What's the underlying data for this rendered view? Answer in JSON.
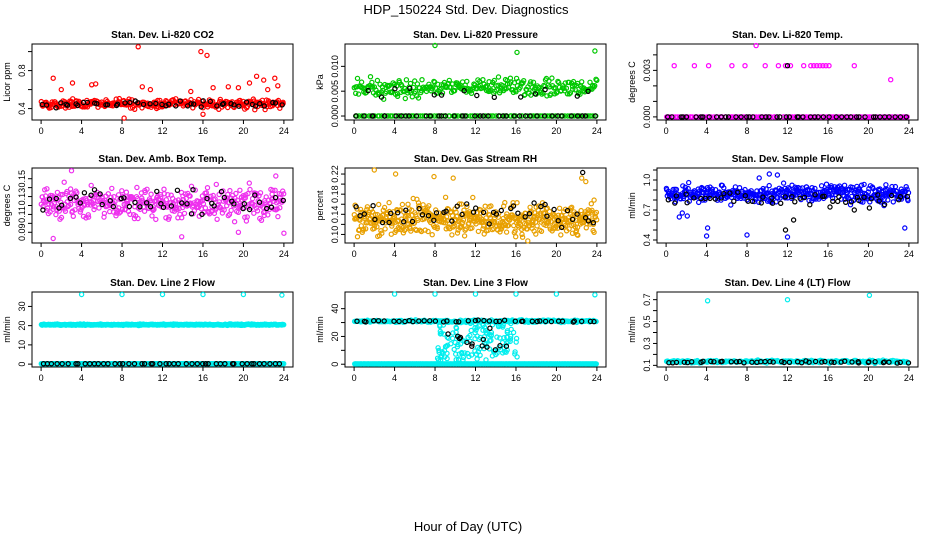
{
  "figure": {
    "title": "HDP_150224  Std. Dev. Diagnostics",
    "xlabel": "Hour of Day (UTC)"
  },
  "chart_data": [
    {
      "type": "scatter",
      "title": "Stan. Dev. Li-820 CO2",
      "ylabel": "Licor ppm",
      "color": "#ff0000",
      "xlim": [
        -0.9,
        24.9
      ],
      "ylim": [
        0.28,
        1.08
      ],
      "xticks": [
        0,
        4,
        8,
        12,
        16,
        20,
        24
      ],
      "xtick_labels": [
        "0",
        "4",
        "8",
        "12",
        "16",
        "20",
        "24"
      ],
      "yticks": [
        0.4,
        0.6,
        0.8,
        1.0
      ],
      "ytick_labels": [
        "0.4",
        "",
        "0.8",
        ""
      ],
      "series": [
        {
          "name": "points",
          "color": "#ff0000",
          "bands": [
            {
              "center": 0.45,
              "spread": 0.05,
              "count": 300
            }
          ],
          "extra": [
            [
              1.2,
              0.72
            ],
            [
              2.0,
              0.6
            ],
            [
              3.1,
              0.67
            ],
            [
              5.0,
              0.65
            ],
            [
              5.4,
              0.66
            ],
            [
              9.6,
              1.05
            ],
            [
              10.0,
              0.63
            ],
            [
              10.8,
              0.6
            ],
            [
              15.8,
              1.0
            ],
            [
              16.4,
              0.96
            ],
            [
              17.0,
              0.62
            ],
            [
              19.5,
              0.62
            ],
            [
              20.6,
              0.67
            ],
            [
              21.3,
              0.74
            ],
            [
              22.0,
              0.7
            ],
            [
              23.1,
              0.72
            ],
            [
              8.2,
              0.3
            ],
            [
              16.0,
              0.34
            ],
            [
              18.5,
              0.63
            ],
            [
              22.4,
              0.6
            ],
            [
              23.4,
              0.64
            ],
            [
              14.8,
              0.58
            ]
          ]
        },
        {
          "name": "hourly",
          "color": "#000000",
          "bands": [
            {
              "center": 0.45,
              "spread": 0.03,
              "count": 48
            }
          ]
        }
      ]
    },
    {
      "type": "scatter",
      "title": "Stan. Dev. Li-820 Pressure",
      "ylabel": "kPa",
      "color": "#00c800",
      "xlim": [
        -0.9,
        24.9
      ],
      "ylim": [
        -0.0008,
        0.0145
      ],
      "xticks": [
        0,
        4,
        8,
        12,
        16,
        20,
        24
      ],
      "xtick_labels": [
        "0",
        "4",
        "8",
        "12",
        "16",
        "20",
        "24"
      ],
      "yticks": [
        0.0,
        0.005,
        0.01
      ],
      "ytick_labels": [
        "0.000",
        "0.005",
        "0.010"
      ],
      "series": [
        {
          "name": "points",
          "color": "#00c800",
          "bands": [
            {
              "center": 0.0057,
              "spread": 0.0017,
              "count": 290
            },
            {
              "center": 0.0,
              "spread": 0.0,
              "count": 110
            }
          ],
          "extra": [
            [
              8.0,
              0.0142
            ],
            [
              16.1,
              0.0128
            ],
            [
              23.8,
              0.0131
            ]
          ]
        },
        {
          "name": "hourly",
          "color": "#000000",
          "bands": [
            {
              "center": 0.0,
              "spread": 0.0,
              "count": 40
            },
            {
              "center": 0.0045,
              "spread": 0.0018,
              "count": 14
            }
          ]
        }
      ]
    },
    {
      "type": "scatter",
      "title": "Stan. Dev. Li-820 Temp.",
      "ylabel": "degrees C",
      "color": "#ff00ff",
      "xlim": [
        -0.9,
        24.9
      ],
      "ylim": [
        -0.0002,
        0.0047
      ],
      "xticks": [
        0,
        4,
        8,
        12,
        16,
        20,
        24
      ],
      "xtick_labels": [
        "0",
        "4",
        "8",
        "12",
        "16",
        "20",
        "24"
      ],
      "yticks": [
        0.0,
        0.001,
        0.002,
        0.003,
        0.004
      ],
      "ytick_labels": [
        "0.000",
        "",
        "",
        "0.003",
        ""
      ],
      "series": [
        {
          "name": "points",
          "color": "#ff00ff",
          "bands": [
            {
              "center": 0.0,
              "spread": 0.0,
              "count": 130
            }
          ],
          "extra": [
            [
              0.8,
              0.0033
            ],
            [
              2.8,
              0.0033
            ],
            [
              4.2,
              0.0033
            ],
            [
              6.5,
              0.0033
            ],
            [
              7.8,
              0.0033
            ],
            [
              8.9,
              0.0046
            ],
            [
              9.8,
              0.0033
            ],
            [
              11.1,
              0.0033
            ],
            [
              11.8,
              0.0033
            ],
            [
              12.3,
              0.0033
            ],
            [
              13.6,
              0.0033
            ],
            [
              14.3,
              0.0033
            ],
            [
              14.6,
              0.0033
            ],
            [
              14.9,
              0.0033
            ],
            [
              15.2,
              0.0033
            ],
            [
              15.5,
              0.0033
            ],
            [
              15.8,
              0.0033
            ],
            [
              16.1,
              0.0033
            ],
            [
              18.6,
              0.0033
            ],
            [
              22.2,
              0.0024
            ]
          ]
        },
        {
          "name": "hourly",
          "color": "#000000",
          "bands": [
            {
              "center": 0.0,
              "spread": 0.0,
              "count": 48
            }
          ],
          "extra": [
            [
              12.0,
              0.0033
            ]
          ]
        }
      ]
    },
    {
      "type": "scatter",
      "title": "Stan. Dev. Amb. Box Temp.",
      "ylabel": "degrees C",
      "color": "#e040e0",
      "xlim": [
        -0.9,
        24.9
      ],
      "ylim": [
        0.078,
        0.162
      ],
      "xticks": [
        0,
        4,
        8,
        12,
        16,
        20,
        24
      ],
      "xtick_labels": [
        "0",
        "4",
        "8",
        "12",
        "16",
        "20",
        "24"
      ],
      "yticks": [
        0.09,
        0.1,
        0.11,
        0.12,
        0.13,
        0.14,
        0.15
      ],
      "ytick_labels": [
        "0.09",
        "",
        "0.11",
        "",
        "0.13",
        "",
        "0.15"
      ],
      "series": [
        {
          "name": "points",
          "color": "#ee30ee",
          "bands": [
            {
              "center": 0.123,
              "spread": 0.018,
              "count": 420
            }
          ],
          "extra": [
            [
              3.0,
              0.159
            ],
            [
              1.2,
              0.083
            ],
            [
              13.9,
              0.085
            ],
            [
              24.0,
              0.089
            ],
            [
              19.5,
              0.09
            ],
            [
              23.2,
              0.153
            ]
          ]
        },
        {
          "name": "hourly",
          "color": "#000000",
          "bands": [
            {
              "center": 0.124,
              "spread": 0.012,
              "count": 48
            }
          ]
        }
      ]
    },
    {
      "type": "scatter",
      "title": "Stan. Dev. Gas Stream RH",
      "ylabel": "percent",
      "color": "#e8a000",
      "xlim": [
        -0.9,
        24.9
      ],
      "ylim": [
        0.083,
        0.232
      ],
      "xticks": [
        0,
        4,
        8,
        12,
        16,
        20,
        24
      ],
      "xtick_labels": [
        "0",
        "4",
        "8",
        "12",
        "16",
        "20",
        "24"
      ],
      "yticks": [
        0.1,
        0.12,
        0.14,
        0.16,
        0.18,
        0.2,
        0.22
      ],
      "ytick_labels": [
        "0.10",
        "",
        "0.14",
        "",
        "0.18",
        "",
        "0.22"
      ],
      "series": [
        {
          "name": "points",
          "color": "#e8a000",
          "bands": [
            {
              "center": 0.13,
              "spread": 0.03,
              "count": 520
            }
          ],
          "extra": [
            [
              2.0,
              0.228
            ],
            [
              4.1,
              0.22
            ],
            [
              7.9,
              0.215
            ],
            [
              9.8,
              0.212
            ],
            [
              22.5,
              0.212
            ],
            [
              22.9,
              0.205
            ]
          ]
        },
        {
          "name": "hourly",
          "color": "#000000",
          "bands": [
            {
              "center": 0.14,
              "spread": 0.03,
              "count": 48
            }
          ],
          "extra": [
            [
              22.6,
              0.223
            ]
          ]
        }
      ]
    },
    {
      "type": "scatter",
      "title": "Stan. Dev. Sample Flow",
      "ylabel": "ml/min",
      "color": "#0000ff",
      "xlim": [
        -0.9,
        24.9
      ],
      "ylim": [
        0.37,
        1.12
      ],
      "xticks": [
        0,
        4,
        8,
        12,
        16,
        20,
        24
      ],
      "xtick_labels": [
        "0",
        "4",
        "8",
        "12",
        "16",
        "20",
        "24"
      ],
      "yticks": [
        0.4,
        0.5,
        0.6,
        0.7,
        0.8,
        0.9,
        1.0,
        1.1
      ],
      "ytick_labels": [
        "0.4",
        "",
        "",
        "0.7",
        "",
        "",
        "1.0",
        ""
      ],
      "series": [
        {
          "name": "points",
          "color": "#0000ff",
          "bands": [
            {
              "center": 0.86,
              "spread": 0.08,
              "count": 420
            }
          ],
          "extra": [
            [
              4.0,
              0.44
            ],
            [
              4.1,
              0.52
            ],
            [
              8.0,
              0.45
            ],
            [
              12.0,
              0.43
            ],
            [
              23.6,
              0.52
            ],
            [
              1.3,
              0.63
            ],
            [
              1.6,
              0.67
            ],
            [
              2.1,
              0.64
            ],
            [
              10.2,
              1.06
            ],
            [
              11.0,
              1.05
            ],
            [
              9.2,
              1.02
            ]
          ]
        },
        {
          "name": "hourly",
          "color": "#000000",
          "bands": [
            {
              "center": 0.8,
              "spread": 0.07,
              "count": 48
            }
          ],
          "extra": [
            [
              11.8,
              0.5
            ],
            [
              12.6,
              0.6
            ],
            [
              18.6,
              0.7
            ],
            [
              20.1,
              0.72
            ],
            [
              16.2,
              0.73
            ]
          ]
        }
      ]
    },
    {
      "type": "scatter",
      "title": "Stan. Dev. Line 2 Flow",
      "ylabel": "ml/min",
      "color": "#00ffff",
      "xlim": [
        -0.9,
        24.9
      ],
      "ylim": [
        -1.5,
        37.5
      ],
      "xticks": [
        0,
        4,
        8,
        12,
        16,
        20,
        24
      ],
      "xtick_labels": [
        "0",
        "4",
        "8",
        "12",
        "16",
        "20",
        "24"
      ],
      "yticks": [
        0,
        10,
        20,
        30
      ],
      "ytick_labels": [
        "0",
        "10",
        "20",
        "30"
      ],
      "series": [
        {
          "name": "points",
          "color": "#00eeee",
          "bands": [
            {
              "center": 20.5,
              "spread": 0.3,
              "count": 420
            },
            {
              "center": 0.2,
              "spread": 0.0,
              "count": 360
            }
          ],
          "extra": [
            [
              4.0,
              36.2
            ],
            [
              8.0,
              36.2
            ],
            [
              12.0,
              36.2
            ],
            [
              16.0,
              36.2
            ],
            [
              20.0,
              36.2
            ],
            [
              23.8,
              35.9
            ]
          ]
        },
        {
          "name": "hourly",
          "color": "#000000",
          "bands": [
            {
              "center": 0.2,
              "spread": 0.0,
              "count": 48
            }
          ]
        }
      ]
    },
    {
      "type": "scatter",
      "title": "Stan. Dev. Line 3 Flow",
      "ylabel": "ml/min",
      "color": "#00ffff",
      "xlim": [
        -0.9,
        24.9
      ],
      "ylim": [
        -2,
        52
      ],
      "xticks": [
        0,
        4,
        8,
        12,
        16,
        20,
        24
      ],
      "xtick_labels": [
        "0",
        "4",
        "8",
        "12",
        "16",
        "20",
        "24"
      ],
      "yticks": [
        0,
        10,
        20,
        30,
        40
      ],
      "ytick_labels": [
        "0",
        "",
        "20",
        "",
        "40"
      ],
      "series": [
        {
          "name": "points",
          "color": "#00eeee",
          "bands": [
            {
              "center": 31,
              "spread": 0.8,
              "count": 230
            },
            {
              "center": 0.2,
              "spread": 0.0,
              "count": 380
            }
          ],
          "extra": [
            [
              4.0,
              50.5
            ],
            [
              8.0,
              50.5
            ],
            [
              12.0,
              50.5
            ],
            [
              16.0,
              50.5
            ],
            [
              20.0,
              50.5
            ],
            [
              23.8,
              50.0
            ]
          ],
          "dip": {
            "x0": 8.2,
            "x1": 16.2,
            "min": 3,
            "max": 30,
            "count": 140
          }
        },
        {
          "name": "hourly",
          "color": "#000000",
          "bands": [
            {
              "center": 31,
              "spread": 0.6,
              "count": 42
            }
          ],
          "dip": {
            "x0": 9.2,
            "x1": 15.5,
            "min": 10,
            "max": 28,
            "count": 14
          }
        }
      ]
    },
    {
      "type": "scatter",
      "title": "Stan. Dev. Line 4 (LT) Flow",
      "ylabel": "ml/min",
      "color": "#00ffff",
      "xlim": [
        -0.9,
        24.9
      ],
      "ylim": [
        0.085,
        0.77
      ],
      "xticks": [
        0,
        4,
        8,
        12,
        16,
        20,
        24
      ],
      "xtick_labels": [
        "0",
        "4",
        "8",
        "12",
        "16",
        "20",
        "24"
      ],
      "yticks": [
        0.1,
        0.2,
        0.3,
        0.4,
        0.5,
        0.6,
        0.7
      ],
      "ytick_labels": [
        "0.1",
        "",
        "0.3",
        "",
        "0.5",
        "",
        "0.7"
      ],
      "series": [
        {
          "name": "points",
          "color": "#00eeee",
          "bands": [
            {
              "center": 0.135,
              "spread": 0.012,
              "count": 260
            }
          ],
          "extra": [
            [
              4.1,
              0.69
            ],
            [
              12.0,
              0.7
            ],
            [
              20.1,
              0.74
            ]
          ]
        },
        {
          "name": "hourly",
          "color": "#000000",
          "bands": [
            {
              "center": 0.13,
              "spread": 0.01,
              "count": 48
            }
          ]
        }
      ]
    }
  ]
}
